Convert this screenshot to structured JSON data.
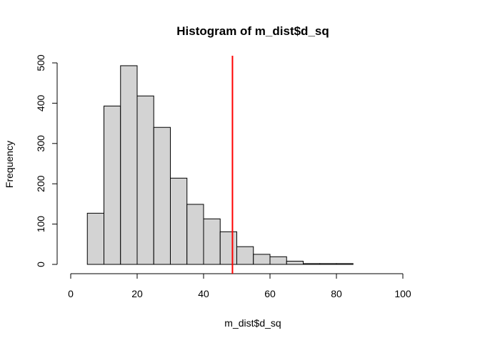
{
  "chart_data": {
    "type": "bar",
    "title": "Histogram of m_dist$d_sq",
    "xlabel": "m_dist$d_sq",
    "ylabel": "Frequency",
    "xlim": [
      0,
      110
    ],
    "ylim": [
      0,
      500
    ],
    "x_ticks": [
      0,
      20,
      40,
      60,
      80,
      100
    ],
    "y_ticks": [
      0,
      100,
      200,
      300,
      400,
      500
    ],
    "bins": [
      {
        "start": 0,
        "end": 5,
        "count": 0
      },
      {
        "start": 5,
        "end": 10,
        "count": 127
      },
      {
        "start": 10,
        "end": 15,
        "count": 393
      },
      {
        "start": 15,
        "end": 20,
        "count": 493
      },
      {
        "start": 20,
        "end": 25,
        "count": 418
      },
      {
        "start": 25,
        "end": 30,
        "count": 340
      },
      {
        "start": 30,
        "end": 35,
        "count": 214
      },
      {
        "start": 35,
        "end": 40,
        "count": 149
      },
      {
        "start": 40,
        "end": 45,
        "count": 113
      },
      {
        "start": 45,
        "end": 50,
        "count": 81
      },
      {
        "start": 50,
        "end": 55,
        "count": 44
      },
      {
        "start": 55,
        "end": 60,
        "count": 25
      },
      {
        "start": 60,
        "end": 65,
        "count": 19
      },
      {
        "start": 65,
        "end": 70,
        "count": 8
      },
      {
        "start": 70,
        "end": 75,
        "count": 2
      },
      {
        "start": 75,
        "end": 80,
        "count": 2
      },
      {
        "start": 80,
        "end": 85,
        "count": 2
      },
      {
        "start": 85,
        "end": 90,
        "count": 0
      },
      {
        "start": 90,
        "end": 95,
        "count": 0
      },
      {
        "start": 95,
        "end": 100,
        "count": 0
      },
      {
        "start": 100,
        "end": 105,
        "count": 0
      },
      {
        "start": 105,
        "end": 110,
        "count": 0
      }
    ],
    "bar_color": "#d3d3d3",
    "bar_border": "#000000",
    "vline": {
      "x": 48.7,
      "color": "#ff0000"
    },
    "grid": false
  }
}
